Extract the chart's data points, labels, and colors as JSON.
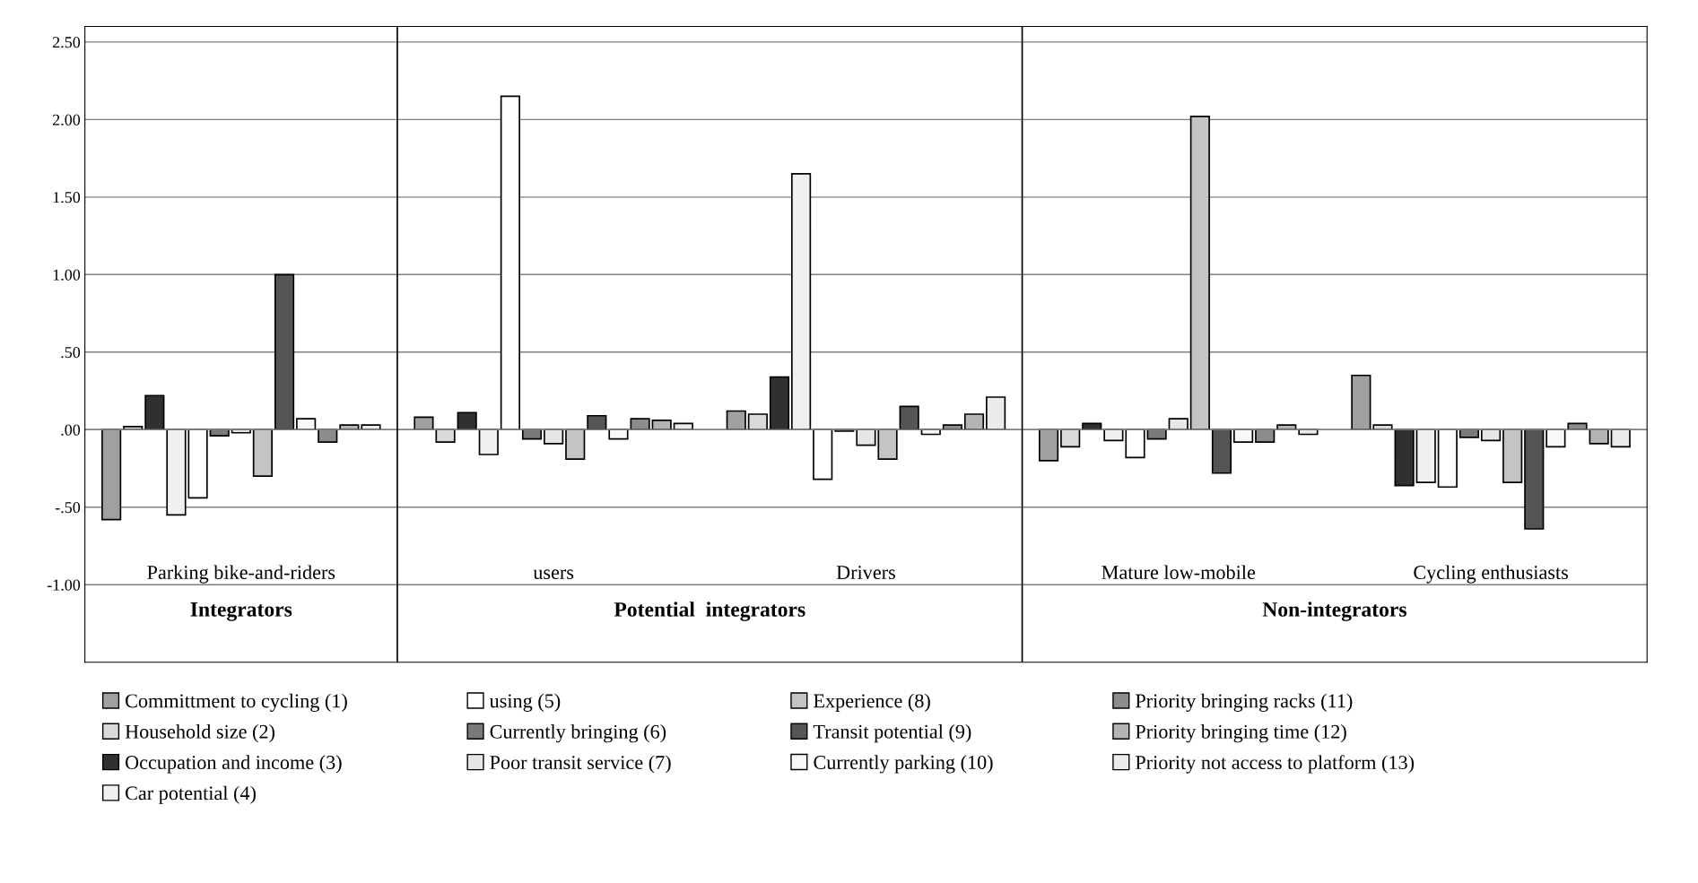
{
  "chart_data": {
    "type": "bar",
    "categories": [
      "Parking bike-and-riders",
      "users",
      "Drivers",
      "Mature low-mobile",
      "Cycling enthusiasts"
    ],
    "series": [
      {
        "name": "Committment to cycling (1)",
        "color": "#a0a0a0",
        "values": [
          -0.58,
          0.08,
          0.12,
          -0.2,
          0.35
        ]
      },
      {
        "name": "Household size (2)",
        "color": "#d9d9d9",
        "values": [
          0.02,
          -0.08,
          0.1,
          -0.11,
          0.03
        ]
      },
      {
        "name": "Occupation and income (3)",
        "color": "#303030",
        "values": [
          0.22,
          0.11,
          0.34,
          0.04,
          -0.36
        ]
      },
      {
        "name": "Car potential (4)",
        "color": "#f0f0f0",
        "values": [
          -0.55,
          -0.16,
          1.65,
          -0.07,
          -0.34
        ]
      },
      {
        "name": "using (5)",
        "color": "#ffffff",
        "values": [
          -0.44,
          2.15,
          -0.32,
          -0.18,
          -0.37
        ]
      },
      {
        "name": "Currently bringing (6)",
        "color": "#7a7a7a",
        "values": [
          -0.04,
          -0.06,
          -0.01,
          -0.06,
          -0.05
        ]
      },
      {
        "name": "Poor transit service (7)",
        "color": "#e6e6e6",
        "values": [
          -0.02,
          -0.09,
          -0.1,
          0.07,
          -0.07
        ]
      },
      {
        "name": "Experience (8)",
        "color": "#c4c4c4",
        "values": [
          -0.3,
          -0.19,
          -0.19,
          2.02,
          -0.34
        ]
      },
      {
        "name": "Transit potential (9)",
        "color": "#555555",
        "values": [
          1.0,
          0.09,
          0.15,
          -0.28,
          -0.64
        ]
      },
      {
        "name": "Currently parking (10)",
        "color": "#f8f8f8",
        "values": [
          0.07,
          -0.06,
          -0.03,
          -0.08,
          -0.11
        ]
      },
      {
        "name": "Priority bringing racks (11)",
        "color": "#8c8c8c",
        "values": [
          -0.08,
          0.07,
          0.03,
          -0.08,
          0.04
        ]
      },
      {
        "name": "Priority bringing time (12)",
        "color": "#b4b4b4",
        "values": [
          0.03,
          0.06,
          0.1,
          0.03,
          -0.09
        ]
      },
      {
        "name": "Priority not access to platform (13)",
        "color": "#ebebeb",
        "values": [
          0.03,
          0.04,
          0.21,
          -0.03,
          -0.11
        ]
      }
    ],
    "ylim": [
      -1.5,
      2.6
    ],
    "yticks": [
      {
        "value": 2.5,
        "label": "2.50"
      },
      {
        "value": 2.0,
        "label": "2.00"
      },
      {
        "value": 1.5,
        "label": "1.50"
      },
      {
        "value": 1.0,
        "label": "1.00"
      },
      {
        "value": 0.5,
        "label": ".50"
      },
      {
        "value": 0,
        "label": ".00"
      },
      {
        "value": -0.5,
        "label": "-.50"
      },
      {
        "value": -1.0,
        "label": "-1.00"
      }
    ],
    "grid": "y",
    "legend": "bottom",
    "annotations": [
      "Integrators",
      "Potential  integrators",
      "Non-integrators"
    ]
  }
}
